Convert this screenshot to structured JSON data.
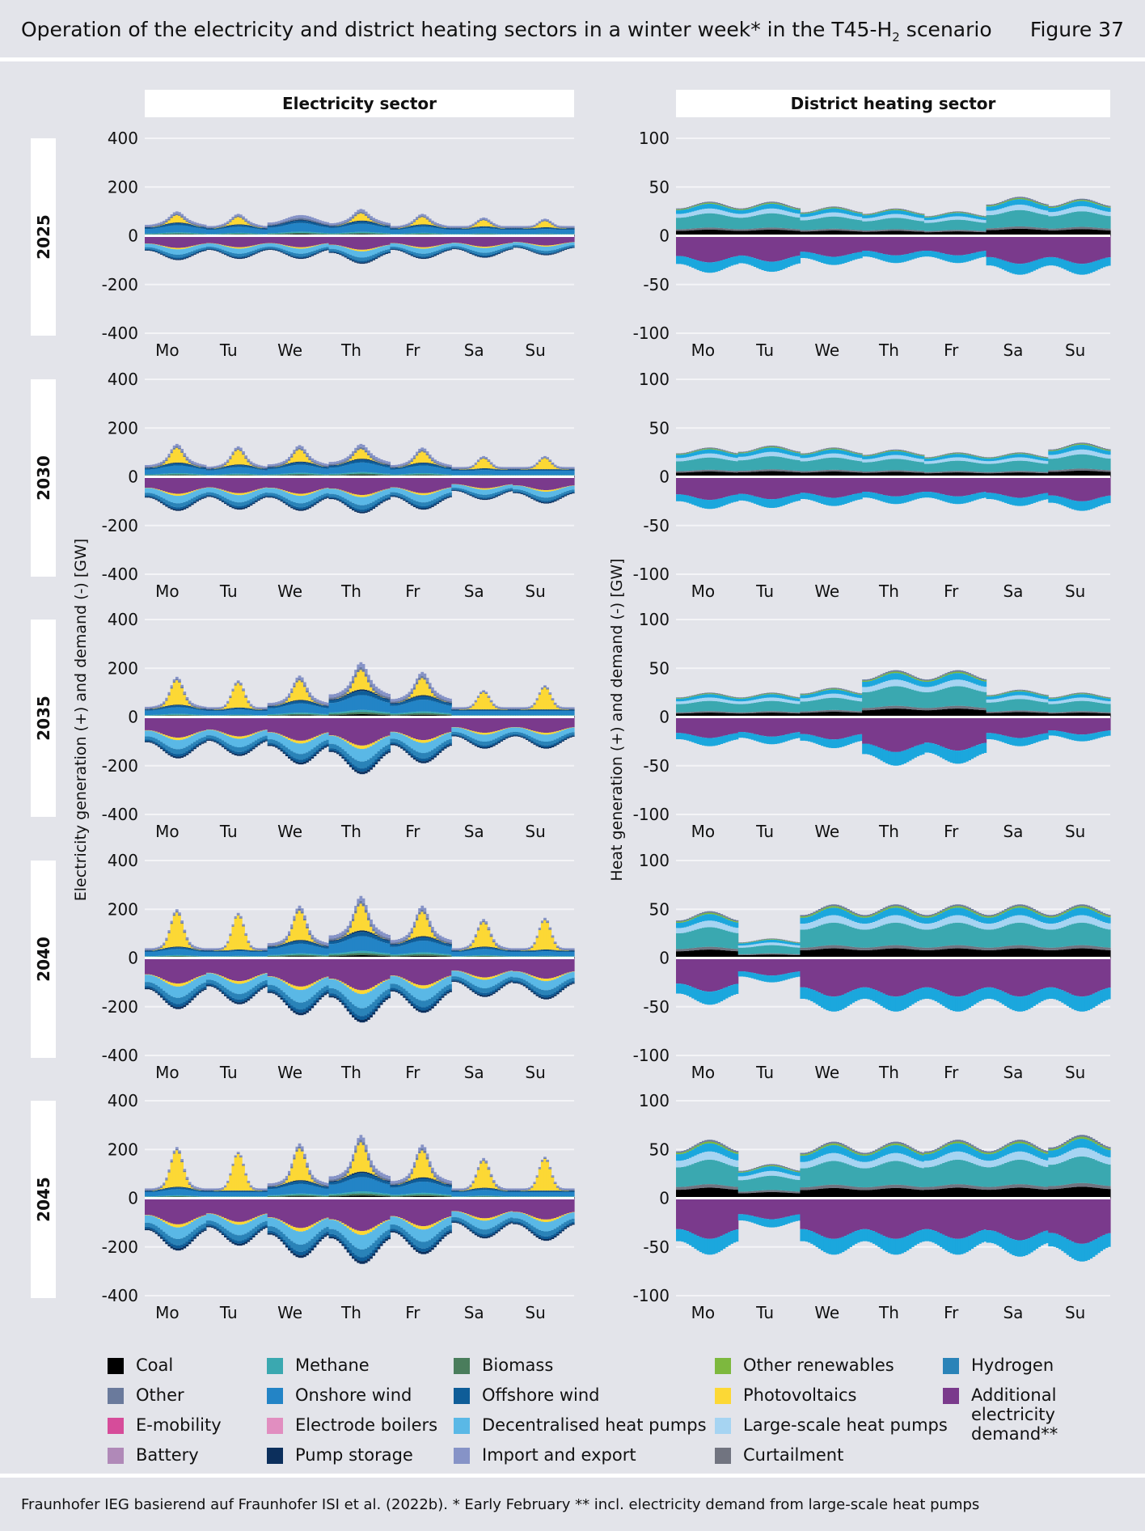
{
  "header": {
    "title": "Operation of the electricity and district heating sectors in a winter week* in the T45-H",
    "title_sub": "2",
    "title_end": " scenario",
    "figure": "Figure 37"
  },
  "footer": "Fraunhofer IEG basierend auf Fraunhofer ISI et al. (2022b). * Early February ** incl. electricity demand from large-scale heat pumps",
  "columns": {
    "electricity": "Electricity sector",
    "heat": "District heating sector"
  },
  "ylabels": {
    "electricity": "Electricity generation (+) and demand (-) [GW]",
    "heat": "Heat generation (+) and demand (-) [GW]"
  },
  "years": [
    "2025",
    "2030",
    "2035",
    "2040",
    "2045"
  ],
  "colors": {
    "Coal": "#000000",
    "Other": "#6a7a9c",
    "E-mobility": "#d64c9a",
    "Battery": "#b089b8",
    "Methane": "#3aa8b0",
    "Onshore wind": "#2384c6",
    "Electrode boilers": "#e18ec0",
    "Pump storage": "#0c2f5c",
    "Biomass": "#4a7d5c",
    "Offshore wind": "#0f5d98",
    "Decentralised heat pumps": "#5ab8e6",
    "Import and export": "#8693c7",
    "Other renewables": "#7db83e",
    "Photovoltaics": "#fcd835",
    "Large-scale heat pumps": "#a6d4f2",
    "Curtailment": "#717480",
    "Hydrogen": "#2a83b8",
    "Additional electricity demand": "#7a3a8c",
    "Heat demand extra": "#1ba7dd"
  },
  "legend": [
    {
      "key": "Coal",
      "label": "Coal"
    },
    {
      "key": "Other",
      "label": "Other"
    },
    {
      "key": "E-mobility",
      "label": "E-mobility"
    },
    {
      "key": "Battery",
      "label": "Battery"
    },
    {
      "key": "Methane",
      "label": "Methane"
    },
    {
      "key": "Onshore wind",
      "label": "Onshore wind"
    },
    {
      "key": "Electrode boilers",
      "label": "Electrode boilers"
    },
    {
      "key": "Pump storage",
      "label": "Pump storage"
    },
    {
      "key": "Biomass",
      "label": "Biomass"
    },
    {
      "key": "Offshore wind",
      "label": "Offshore wind"
    },
    {
      "key": "Decentralised heat pumps",
      "label": "Decentralised heat pumps"
    },
    {
      "key": "Import and export",
      "label": "Import and export"
    },
    {
      "key": "Other renewables",
      "label": "Other renewables"
    },
    {
      "key": "Photovoltaics",
      "label": "Photovoltaics"
    },
    {
      "key": "Large-scale heat pumps",
      "label": "Large-scale heat pumps"
    },
    {
      "key": "Curtailment",
      "label": "Curtailment"
    },
    {
      "key": "Hydrogen",
      "label": "Hydrogen"
    },
    {
      "key": "Additional electricity demand",
      "label": "Additional",
      "label2": "electricity demand**"
    }
  ],
  "chart_data": [
    {
      "type": "area",
      "title": "Electricity sector 2025",
      "days": [
        "Mo",
        "Tu",
        "We",
        "Th",
        "Fr",
        "Sa",
        "Su"
      ],
      "ylim": [
        -400,
        400
      ],
      "yticks": [
        400,
        200,
        0,
        -200,
        -400
      ],
      "peak_total": [
        100,
        90,
        85,
        110,
        90,
        75,
        70
      ],
      "pv_peak": [
        30,
        30,
        0,
        30,
        30,
        25,
        25
      ],
      "demand_min": [
        -100,
        -95,
        -95,
        -115,
        -95,
        -90,
        -80
      ]
    },
    {
      "type": "area",
      "title": "District heating sector 2025",
      "days": [
        "Mo",
        "Tu",
        "We",
        "Th",
        "Fr",
        "Sa",
        "Su"
      ],
      "ylim": [
        -100,
        100
      ],
      "yticks": [
        100,
        50,
        0,
        -50,
        -100
      ],
      "peak_total": [
        35,
        35,
        30,
        28,
        25,
        40,
        38
      ],
      "demand_min": [
        -38,
        -37,
        -30,
        -28,
        -28,
        -40,
        -40
      ]
    },
    {
      "type": "area",
      "title": "Electricity sector 2030",
      "days": [
        "Mo",
        "Tu",
        "We",
        "Th",
        "Fr",
        "Sa",
        "Su"
      ],
      "ylim": [
        -400,
        400
      ],
      "yticks": [
        400,
        200,
        0,
        -200,
        -400
      ],
      "peak_total": [
        135,
        125,
        130,
        135,
        120,
        85,
        85
      ],
      "pv_peak": [
        60,
        60,
        50,
        40,
        45,
        40,
        45
      ],
      "demand_min": [
        -140,
        -135,
        -140,
        -150,
        -135,
        -95,
        -110
      ]
    },
    {
      "type": "area",
      "title": "District heating sector 2030",
      "days": [
        "Mo",
        "Tu",
        "We",
        "Th",
        "Fr",
        "Sa",
        "Su"
      ],
      "ylim": [
        -100,
        100
      ],
      "yticks": [
        100,
        50,
        0,
        -50,
        -100
      ],
      "peak_total": [
        30,
        32,
        30,
        28,
        25,
        25,
        35
      ],
      "demand_min": [
        -33,
        -32,
        -30,
        -28,
        -28,
        -30,
        -35
      ]
    },
    {
      "type": "area",
      "title": "Electricity sector 2035",
      "days": [
        "Mo",
        "Tu",
        "We",
        "Th",
        "Fr",
        "Sa",
        "Su"
      ],
      "ylim": [
        -400,
        400
      ],
      "yticks": [
        400,
        200,
        0,
        -200,
        -400
      ],
      "peak_total": [
        165,
        150,
        170,
        225,
        185,
        110,
        110
      ],
      "pv_peak": [
        100,
        100,
        80,
        80,
        70,
        70,
        90
      ],
      "demand_min": [
        -170,
        -160,
        -195,
        -235,
        -190,
        -130,
        -130
      ]
    },
    {
      "type": "area",
      "title": "District heating sector 2035",
      "days": [
        "Mo",
        "Tu",
        "We",
        "Th",
        "Fr",
        "Sa",
        "Su"
      ],
      "ylim": [
        -100,
        100
      ],
      "yticks": [
        100,
        50,
        0,
        -50,
        -100
      ],
      "peak_total": [
        25,
        25,
        30,
        48,
        48,
        28,
        25
      ],
      "demand_min": [
        -30,
        -28,
        -32,
        -50,
        -48,
        -30,
        -25
      ]
    },
    {
      "type": "area",
      "title": "Electricity sector 2040",
      "days": [
        "Mo",
        "Tu",
        "We",
        "Th",
        "Fr",
        "Sa",
        "Su"
      ],
      "ylim": [
        -400,
        400
      ],
      "yticks": [
        400,
        200,
        0,
        -200,
        -400
      ],
      "peak_total": [
        200,
        185,
        215,
        255,
        215,
        160,
        165
      ],
      "pv_peak": [
        140,
        140,
        120,
        110,
        100,
        100,
        120
      ],
      "demand_min": [
        -210,
        -190,
        -235,
        -265,
        -225,
        -160,
        -170
      ]
    },
    {
      "type": "area",
      "title": "District heating sector 2040",
      "days": [
        "Mo",
        "Tu",
        "We",
        "Th",
        "Fr",
        "Sa",
        "Su"
      ],
      "ylim": [
        -100,
        100
      ],
      "yticks": [
        100,
        50,
        0,
        -50,
        -100
      ],
      "peak_total": [
        48,
        20,
        55,
        55,
        55,
        55,
        55
      ],
      "demand_min": [
        -48,
        -25,
        -55,
        -55,
        -55,
        -55,
        -55
      ]
    },
    {
      "type": "area",
      "title": "Electricity sector 2045",
      "days": [
        "Mo",
        "Tu",
        "We",
        "Th",
        "Fr",
        "Sa",
        "Su"
      ],
      "ylim": [
        -400,
        400
      ],
      "yticks": [
        400,
        200,
        0,
        -200,
        -400
      ],
      "peak_total": [
        210,
        190,
        225,
        260,
        220,
        165,
        165
      ],
      "pv_peak": [
        150,
        150,
        130,
        120,
        110,
        110,
        130
      ],
      "demand_min": [
        -215,
        -195,
        -245,
        -270,
        -230,
        -165,
        -175
      ]
    },
    {
      "type": "area",
      "title": "District heating sector 2045",
      "days": [
        "Mo",
        "Tu",
        "We",
        "Th",
        "Fr",
        "Sa",
        "Su"
      ],
      "ylim": [
        -100,
        100
      ],
      "yticks": [
        100,
        50,
        0,
        -50,
        -100
      ],
      "peak_total": [
        60,
        35,
        58,
        58,
        60,
        60,
        65
      ],
      "demand_min": [
        -58,
        -30,
        -58,
        -58,
        -58,
        -60,
        -65
      ]
    }
  ]
}
